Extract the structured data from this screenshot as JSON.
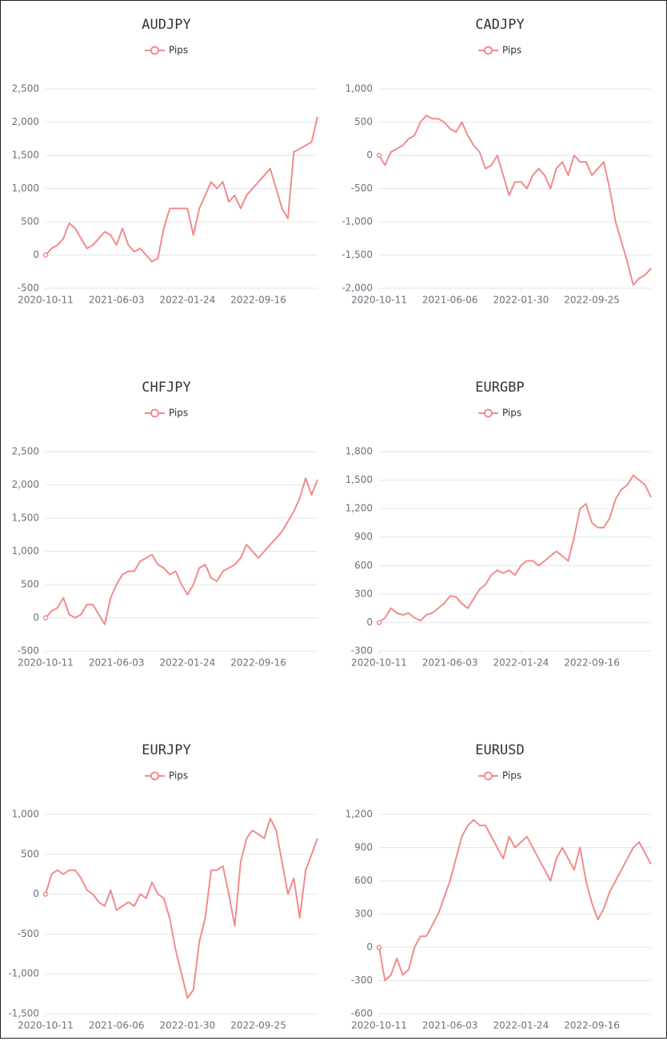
{
  "chart_data": [
    {
      "type": "line",
      "title": "AUDJPY",
      "categories": [
        "2020-10-11",
        null,
        null,
        null,
        null,
        null,
        null,
        null,
        null,
        null,
        null,
        null,
        "2021-06-03",
        null,
        null,
        null,
        null,
        null,
        null,
        null,
        null,
        null,
        null,
        null,
        "2022-01-24",
        null,
        null,
        null,
        null,
        null,
        null,
        null,
        null,
        null,
        null,
        null,
        "2022-09-16",
        null,
        null,
        null,
        null,
        null,
        null,
        null,
        null,
        null,
        null
      ],
      "series": [
        {
          "name": "Pips",
          "color": "#f28b8b",
          "values": [
            0,
            100,
            150,
            250,
            480,
            400,
            250,
            100,
            150,
            250,
            350,
            300,
            150,
            400,
            150,
            50,
            100,
            0,
            -100,
            -50,
            400,
            700,
            700,
            700,
            700,
            300,
            700,
            900,
            1100,
            1000,
            1100,
            800,
            900,
            700,
            900,
            1000,
            1100,
            1200,
            1300,
            1000,
            700,
            550,
            1550,
            1600,
            1650,
            1700,
            2080
          ]
        }
      ],
      "ylim": [
        -500,
        2500
      ],
      "yticks": [
        -500,
        0,
        500,
        {
          "value": 1000,
          "label": "1,000"
        },
        {
          "value": 1500,
          "label": "1,500"
        },
        {
          "value": 2000,
          "label": "2,000"
        },
        {
          "value": 2500,
          "label": "2,500"
        }
      ],
      "grid": true
    },
    {
      "type": "line",
      "title": "CADJPY",
      "categories": [
        "2020-10-11",
        null,
        null,
        null,
        null,
        null,
        null,
        null,
        null,
        null,
        null,
        null,
        "2021-06-06",
        null,
        null,
        null,
        null,
        null,
        null,
        null,
        null,
        null,
        null,
        null,
        "2022-01-30",
        null,
        null,
        null,
        null,
        null,
        null,
        null,
        null,
        null,
        null,
        null,
        "2022-09-25",
        null,
        null,
        null,
        null,
        null,
        null,
        null,
        null,
        null,
        null
      ],
      "series": [
        {
          "name": "Pips",
          "color": "#f28b8b",
          "values": [
            0,
            -150,
            50,
            100,
            150,
            250,
            300,
            500,
            600,
            550,
            550,
            500,
            400,
            350,
            500,
            300,
            150,
            50,
            -200,
            -150,
            0,
            -300,
            -600,
            -400,
            -400,
            -500,
            -300,
            -200,
            -300,
            -500,
            -200,
            -100,
            -300,
            0,
            -100,
            -100,
            -300,
            -200,
            -100,
            -500,
            -1000,
            -1300,
            -1600,
            -1950,
            -1850,
            -1800,
            -1700
          ]
        }
      ],
      "ylim": [
        -2000,
        1000
      ],
      "yticks": [
        {
          "value": -2000,
          "label": "-2,000"
        },
        {
          "value": -1500,
          "label": "-1,500"
        },
        {
          "value": -1000,
          "label": "-1,000"
        },
        -500,
        0,
        500,
        {
          "value": 1000,
          "label": "1,000"
        }
      ],
      "grid": true
    },
    {
      "type": "line",
      "title": "CHFJPY",
      "categories": [
        "2020-10-11",
        null,
        null,
        null,
        null,
        null,
        null,
        null,
        null,
        null,
        null,
        null,
        "2021-06-03",
        null,
        null,
        null,
        null,
        null,
        null,
        null,
        null,
        null,
        null,
        null,
        "2022-01-24",
        null,
        null,
        null,
        null,
        null,
        null,
        null,
        null,
        null,
        null,
        null,
        "2022-09-16",
        null,
        null,
        null,
        null,
        null,
        null,
        null,
        null,
        null,
        null
      ],
      "series": [
        {
          "name": "Pips",
          "color": "#f28b8b",
          "values": [
            0,
            100,
            150,
            300,
            50,
            0,
            50,
            200,
            200,
            50,
            -100,
            300,
            500,
            650,
            700,
            700,
            850,
            900,
            950,
            800,
            750,
            650,
            700,
            500,
            350,
            500,
            750,
            800,
            600,
            550,
            700,
            750,
            800,
            900,
            1100,
            1000,
            900,
            1000,
            1100,
            1200,
            1300,
            1450,
            1600,
            1800,
            2100,
            1850,
            2080
          ]
        }
      ],
      "ylim": [
        -500,
        2500
      ],
      "yticks": [
        -500,
        0,
        500,
        {
          "value": 1000,
          "label": "1,000"
        },
        {
          "value": 1500,
          "label": "1,500"
        },
        {
          "value": 2000,
          "label": "2,000"
        },
        {
          "value": 2500,
          "label": "2,500"
        }
      ],
      "grid": true
    },
    {
      "type": "line",
      "title": "EURGBP",
      "categories": [
        "2020-10-11",
        null,
        null,
        null,
        null,
        null,
        null,
        null,
        null,
        null,
        null,
        null,
        "2021-06-03",
        null,
        null,
        null,
        null,
        null,
        null,
        null,
        null,
        null,
        null,
        null,
        "2022-01-24",
        null,
        null,
        null,
        null,
        null,
        null,
        null,
        null,
        null,
        null,
        null,
        "2022-09-16",
        null,
        null,
        null,
        null,
        null,
        null,
        null,
        null,
        null,
        null
      ],
      "series": [
        {
          "name": "Pips",
          "color": "#f28b8b",
          "values": [
            0,
            50,
            150,
            100,
            80,
            100,
            50,
            20,
            80,
            100,
            150,
            200,
            280,
            270,
            200,
            150,
            250,
            350,
            400,
            500,
            550,
            520,
            550,
            500,
            600,
            650,
            650,
            600,
            650,
            700,
            750,
            700,
            650,
            900,
            1200,
            1250,
            1050,
            1000,
            1000,
            1100,
            1300,
            1400,
            1450,
            1550,
            1500,
            1450,
            1320
          ]
        }
      ],
      "ylim": [
        -300,
        1800
      ],
      "yticks": [
        -300,
        0,
        300,
        600,
        900,
        {
          "value": 1200,
          "label": "1,200"
        },
        {
          "value": 1500,
          "label": "1,500"
        },
        {
          "value": 1800,
          "label": "1,800"
        }
      ],
      "grid": true
    },
    {
      "type": "line",
      "title": "EURJPY",
      "categories": [
        "2020-10-11",
        null,
        null,
        null,
        null,
        null,
        null,
        null,
        null,
        null,
        null,
        null,
        "2021-06-06",
        null,
        null,
        null,
        null,
        null,
        null,
        null,
        null,
        null,
        null,
        null,
        "2022-01-30",
        null,
        null,
        null,
        null,
        null,
        null,
        null,
        null,
        null,
        null,
        null,
        "2022-09-25",
        null,
        null,
        null,
        null,
        null,
        null,
        null,
        null,
        null,
        null
      ],
      "series": [
        {
          "name": "Pips",
          "color": "#f28b8b",
          "values": [
            0,
            250,
            300,
            250,
            300,
            300,
            200,
            50,
            0,
            -100,
            -150,
            50,
            -200,
            -150,
            -100,
            -150,
            0,
            -50,
            150,
            0,
            -50,
            -300,
            -700,
            -1000,
            -1300,
            -1200,
            -600,
            -300,
            300,
            300,
            350,
            0,
            -400,
            400,
            700,
            800,
            750,
            700,
            950,
            800,
            400,
            0,
            200,
            -300,
            300,
            500,
            700
          ]
        }
      ],
      "ylim": [
        -1500,
        1000
      ],
      "yticks": [
        {
          "value": -1500,
          "label": "-1,500"
        },
        {
          "value": -1000,
          "label": "-1,000"
        },
        -500,
        0,
        500,
        {
          "value": 1000,
          "label": "1,000"
        }
      ],
      "grid": true
    },
    {
      "type": "line",
      "title": "EURUSD",
      "categories": [
        "2020-10-11",
        null,
        null,
        null,
        null,
        null,
        null,
        null,
        null,
        null,
        null,
        null,
        "2021-06-03",
        null,
        null,
        null,
        null,
        null,
        null,
        null,
        null,
        null,
        null,
        null,
        "2022-01-24",
        null,
        null,
        null,
        null,
        null,
        null,
        null,
        null,
        null,
        null,
        null,
        "2022-09-16",
        null,
        null,
        null,
        null,
        null,
        null,
        null,
        null,
        null,
        null
      ],
      "series": [
        {
          "name": "Pips",
          "color": "#f28b8b",
          "values": [
            0,
            -300,
            -250,
            -100,
            -250,
            -200,
            0,
            100,
            100,
            200,
            300,
            450,
            600,
            800,
            1000,
            1100,
            1150,
            1100,
            1100,
            1000,
            900,
            800,
            1000,
            900,
            950,
            1000,
            900,
            800,
            700,
            600,
            800,
            900,
            800,
            700,
            900,
            600,
            400,
            250,
            350,
            500,
            600,
            700,
            800,
            900,
            950,
            850,
            750
          ]
        }
      ],
      "ylim": [
        -600,
        1200
      ],
      "yticks": [
        -600,
        -300,
        0,
        300,
        600,
        900,
        {
          "value": 1200,
          "label": "1,200"
        }
      ],
      "grid": true
    }
  ]
}
